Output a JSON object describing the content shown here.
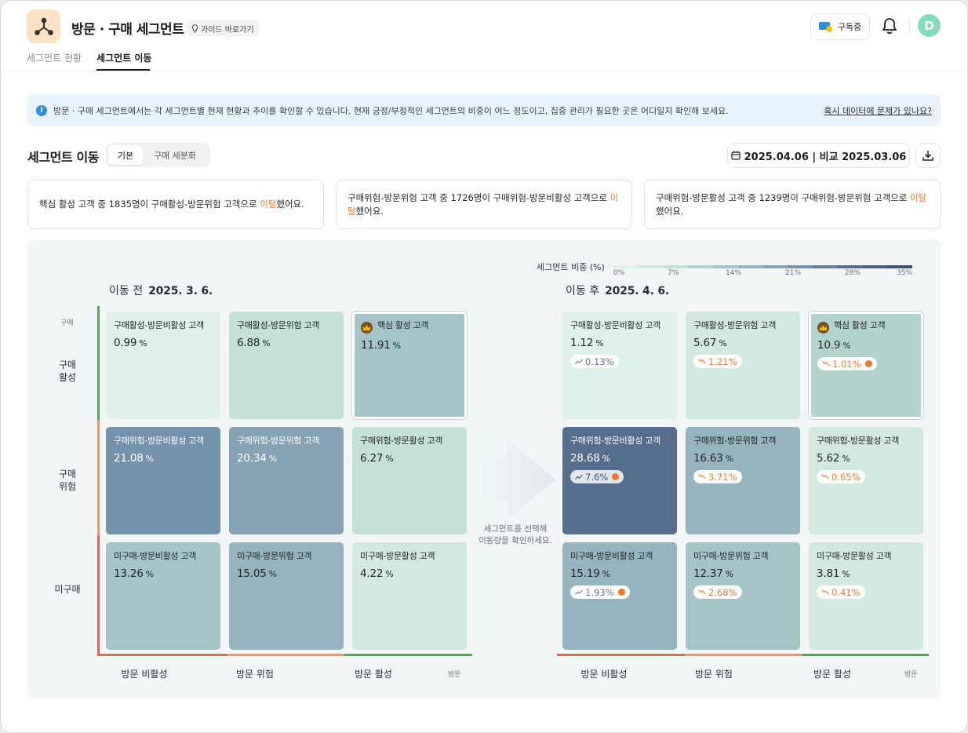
{
  "app": {
    "title": "방문 · 구매 세그먼트",
    "guide_label": "가이드 바로가기",
    "subscription_label": "구독중",
    "avatar_initial": "D"
  },
  "tabs": [
    "세그먼트 현황",
    "세그먼트 이동"
  ],
  "banner": {
    "text": "방문 · 구매 세그먼트에서는 각 세그먼트별 현재 현황과 추이를 확인할 수 있습니다. 현재 긍정/부정적인 세그먼트의 비중이 어느 정도이고, 집중 관리가 필요한 곳은 어디일지 확인해 보세요.",
    "link": "혹시 데이터에 문제가 있나요?"
  },
  "section": {
    "title": "세그먼트 이동",
    "toggle": [
      "기본",
      "구매 세분화"
    ],
    "date_range": "2025.04.06 | 비교 2025.03.06"
  },
  "insights": [
    {
      "pre": "핵심 활성 고객 중 1835명이 구매활성-방문위험 고객으로 ",
      "hl": "이탈",
      "post": "했어요."
    },
    {
      "pre": "구매위험-방문위험 고객 중 1726명이 구매위험-방문비활성 고객으로 ",
      "hl": "이탈",
      "post": "했어요."
    },
    {
      "pre": "구매위험-방문활성 고객 중 1239명이 구매위험-방문위험 고객으로 ",
      "hl": "이탈",
      "post": "했어요."
    }
  ],
  "legend": {
    "title": "세그먼트 비중 (%)",
    "ticks": [
      "0%",
      "7%",
      "14%",
      "21%",
      "28%",
      "35%"
    ],
    "colors": [
      "#dff1e8",
      "#d1e9de",
      "#c3e1d6",
      "#b2d3ce",
      "#a4c4c8",
      "#95b4bf",
      "#86a3b5",
      "#7592ab",
      "#65809d",
      "#566e8e",
      "#495d80",
      "#3f4f6e"
    ]
  },
  "before": {
    "label": "이동 전",
    "date": "2025. 3. 6."
  },
  "after": {
    "label": "이동 후",
    "date": "2025. 4. 6."
  },
  "y_axis": {
    "title": "구매",
    "rows": [
      "구매\n활성",
      "구매\n위험",
      "미구매"
    ]
  },
  "x_axis": {
    "title": "방문",
    "cols": [
      "방문 비활성",
      "방문 위험",
      "방문 활성"
    ]
  },
  "center_hint": "세그먼트를 선택해\n이동량을 확인하세요.",
  "before_cells": [
    {
      "name": "구매활성-방문비활성 고객",
      "value": "0.99",
      "unit": "%"
    },
    {
      "name": "구매활성-방문위험 고객",
      "value": "6.88",
      "unit": "%"
    },
    {
      "name": "핵심 활성 고객",
      "value": "11.91",
      "unit": "%"
    },
    {
      "name": "구매위험-방문비활성 고객",
      "value": "21.08",
      "unit": "%"
    },
    {
      "name": "구매위험-방문위험 고객",
      "value": "20.34",
      "unit": "%"
    },
    {
      "name": "구매위험-방문활성 고객",
      "value": "6.27",
      "unit": "%"
    },
    {
      "name": "미구매-방문비활성 고객",
      "value": "13.26",
      "unit": "%"
    },
    {
      "name": "미구매-방문위험 고객",
      "value": "15.05",
      "unit": "%"
    },
    {
      "name": "미구매-방문활성 고객",
      "value": "4.22",
      "unit": "%"
    }
  ],
  "after_cells": [
    {
      "name": "구매활성-방문비활성 고객",
      "value": "1.12",
      "unit": "%",
      "change": "0.13%"
    },
    {
      "name": "구매활성-방문위험 고객",
      "value": "5.67",
      "unit": "%",
      "change": "1.21%"
    },
    {
      "name": "핵심 활성 고객",
      "value": "10.9",
      "unit": "%",
      "change": "1.01%"
    },
    {
      "name": "구매위험-방문비활성 고객",
      "value": "28.68",
      "unit": "%",
      "change": "7.6%"
    },
    {
      "name": "구매위험-방문위험 고객",
      "value": "16.63",
      "unit": "%",
      "change": "3.71%"
    },
    {
      "name": "구매위험-방문활성 고객",
      "value": "5.62",
      "unit": "%",
      "change": "0.65%"
    },
    {
      "name": "미구매-방문비활성 고객",
      "value": "15.19",
      "unit": "%",
      "change": "1.93%"
    },
    {
      "name": "미구매-방문위험 고객",
      "value": "12.37",
      "unit": "%",
      "change": "2.68%"
    },
    {
      "name": "미구매-방문활성 고객",
      "value": "3.81",
      "unit": "%",
      "change": "0.41%"
    }
  ],
  "colors": {
    "accent_orange": "#ee7a2a",
    "info_blue": "#2e90d8",
    "axis_green": "#5aa35e",
    "axis_orange": "#e89a6a",
    "axis_red": "#d66a60"
  }
}
